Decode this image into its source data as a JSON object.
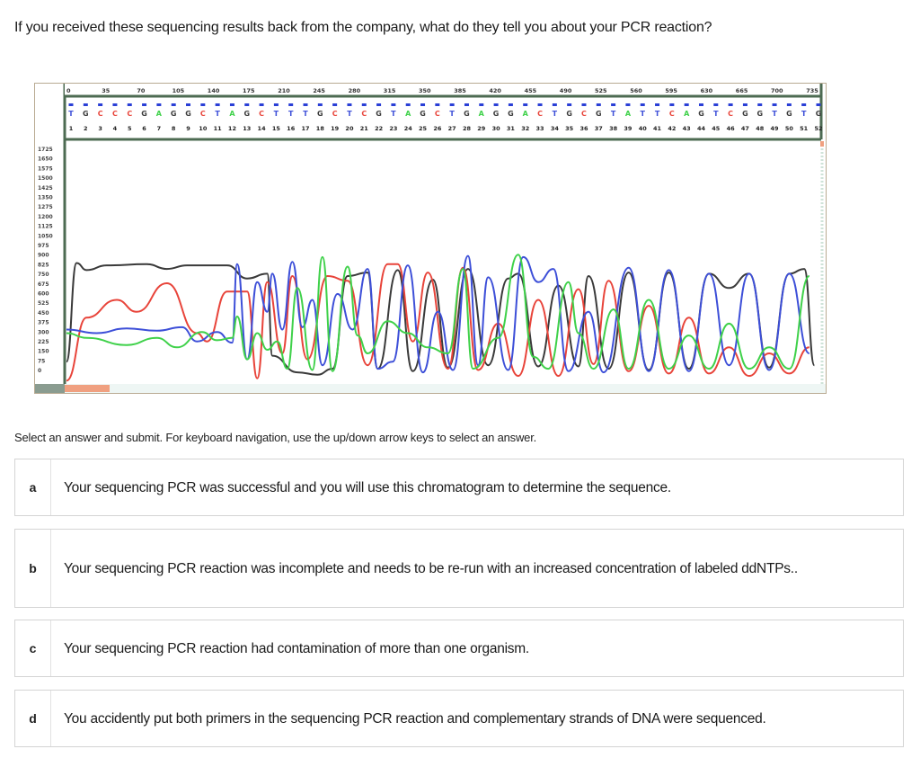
{
  "question": {
    "text": "If you received these sequencing results back from the company, what do they tell you about your PCR reaction?"
  },
  "instructions": "Select an answer and submit. For keyboard navigation, use the up/down arrow keys to select an answer.",
  "options": [
    {
      "letter": "a",
      "text": "Your sequencing PCR was successful and you will use this chromatogram to determine the sequence."
    },
    {
      "letter": "b",
      "text": "Your sequencing PCR reaction was incomplete and needs to be re-run with an increased concentration of labeled ddNTPs.."
    },
    {
      "letter": "c",
      "text": "Your sequencing PCR reaction had contamination of more than one organism."
    },
    {
      "letter": "d",
      "text": "You accidently put both primers in the sequencing PCR reaction and complementary strands of DNA were sequenced."
    }
  ],
  "colors": {
    "G": "#3a3a3a",
    "C": "#e8443a",
    "T": "#3d4fd8",
    "A": "#3fd14a",
    "frame": "#b9aa92",
    "axis_bar": "#4d6b52",
    "scroll_thumb": "#f0a080"
  },
  "chart_data": {
    "type": "line",
    "title": "DNA sequencing chromatogram",
    "x_ticks": [
      0,
      35,
      70,
      105,
      140,
      175,
      210,
      245,
      280,
      315,
      350,
      385,
      420,
      455,
      490,
      525,
      560,
      595,
      630,
      665,
      700,
      735
    ],
    "y_ticks": [
      1725,
      1650,
      1575,
      1500,
      1425,
      1350,
      1275,
      1200,
      1125,
      1050,
      975,
      900,
      825,
      750,
      675,
      600,
      525,
      450,
      375,
      300,
      225,
      150,
      75,
      0
    ],
    "ylim": [
      0,
      1725
    ],
    "xlim": [
      0,
      750
    ],
    "base_calls": [
      "T",
      "G",
      "C",
      "C",
      "C",
      "G",
      "A",
      "G",
      "G",
      "C",
      "T",
      "A",
      "G",
      "C",
      "T",
      "T",
      "T",
      "G",
      "C",
      "T",
      "C",
      "G",
      "T",
      "A",
      "G",
      "C",
      "T",
      "G",
      "A",
      "G",
      "G",
      "A",
      "C",
      "T",
      "G",
      "C",
      "G",
      "T",
      "A",
      "T",
      "T",
      "C",
      "A",
      "G",
      "T",
      "C",
      "G",
      "G",
      "T",
      "G",
      "T",
      "G"
    ],
    "base_numbers": [
      1,
      2,
      3,
      4,
      5,
      6,
      7,
      8,
      9,
      10,
      11,
      12,
      13,
      14,
      15,
      16,
      17,
      18,
      19,
      20,
      21,
      22,
      23,
      24,
      25,
      26,
      27,
      28,
      29,
      30,
      31,
      32,
      33,
      34,
      35,
      36,
      37,
      38,
      39,
      40,
      41,
      42,
      43,
      44,
      45,
      46,
      47,
      48,
      49,
      50,
      51,
      52
    ],
    "legend": [
      {
        "base": "G",
        "color": "black"
      },
      {
        "base": "C",
        "color": "red"
      },
      {
        "base": "T",
        "color": "blue"
      },
      {
        "base": "A",
        "color": "green"
      }
    ],
    "series": [
      {
        "name": "G",
        "points": [
          [
            0,
            180
          ],
          [
            10,
            1010
          ],
          [
            20,
            950
          ],
          [
            40,
            990
          ],
          [
            80,
            1000
          ],
          [
            100,
            960
          ],
          [
            120,
            990
          ],
          [
            160,
            990
          ],
          [
            180,
            880
          ],
          [
            200,
            920
          ],
          [
            205,
            230
          ],
          [
            230,
            90
          ],
          [
            250,
            70
          ],
          [
            265,
            120
          ],
          [
            280,
            900
          ],
          [
            300,
            930
          ],
          [
            310,
            120
          ],
          [
            330,
            950
          ],
          [
            345,
            100
          ],
          [
            365,
            870
          ],
          [
            380,
            130
          ],
          [
            400,
            960
          ],
          [
            420,
            150
          ],
          [
            440,
            880
          ],
          [
            450,
            920
          ],
          [
            470,
            140
          ],
          [
            490,
            820
          ],
          [
            510,
            140
          ],
          [
            520,
            900
          ],
          [
            540,
            120
          ],
          [
            560,
            930
          ],
          [
            580,
            110
          ],
          [
            600,
            930
          ],
          [
            620,
            120
          ],
          [
            640,
            920
          ],
          [
            660,
            800
          ],
          [
            680,
            920
          ],
          [
            700,
            130
          ],
          [
            720,
            920
          ],
          [
            735,
            960
          ],
          [
            745,
            150
          ]
        ]
      },
      {
        "name": "C",
        "points": [
          [
            0,
            20
          ],
          [
            20,
            550
          ],
          [
            50,
            700
          ],
          [
            70,
            600
          ],
          [
            100,
            840
          ],
          [
            130,
            420
          ],
          [
            140,
            350
          ],
          [
            160,
            770
          ],
          [
            180,
            770
          ],
          [
            190,
            40
          ],
          [
            200,
            850
          ],
          [
            215,
            250
          ],
          [
            225,
            900
          ],
          [
            240,
            200
          ],
          [
            260,
            900
          ],
          [
            280,
            860
          ],
          [
            300,
            150
          ],
          [
            320,
            1000
          ],
          [
            330,
            1000
          ],
          [
            345,
            350
          ],
          [
            360,
            930
          ],
          [
            380,
            120
          ],
          [
            395,
            970
          ],
          [
            410,
            110
          ],
          [
            430,
            500
          ],
          [
            450,
            60
          ],
          [
            470,
            700
          ],
          [
            490,
            60
          ],
          [
            510,
            790
          ],
          [
            525,
            160
          ],
          [
            540,
            860
          ],
          [
            560,
            100
          ],
          [
            580,
            650
          ],
          [
            600,
            80
          ],
          [
            620,
            550
          ],
          [
            640,
            80
          ],
          [
            660,
            300
          ],
          [
            680,
            60
          ],
          [
            700,
            250
          ],
          [
            720,
            80
          ],
          [
            740,
            300
          ]
        ]
      },
      {
        "name": "T",
        "points": [
          [
            0,
            450
          ],
          [
            30,
            420
          ],
          [
            60,
            460
          ],
          [
            90,
            440
          ],
          [
            115,
            470
          ],
          [
            130,
            350
          ],
          [
            150,
            430
          ],
          [
            165,
            340
          ],
          [
            170,
            1000
          ],
          [
            180,
            200
          ],
          [
            190,
            850
          ],
          [
            200,
            600
          ],
          [
            205,
            920
          ],
          [
            215,
            450
          ],
          [
            225,
            1020
          ],
          [
            235,
            470
          ],
          [
            245,
            700
          ],
          [
            255,
            150
          ],
          [
            270,
            750
          ],
          [
            285,
            450
          ],
          [
            300,
            960
          ],
          [
            310,
            120
          ],
          [
            325,
            180
          ],
          [
            340,
            990
          ],
          [
            355,
            90
          ],
          [
            370,
            600
          ],
          [
            385,
            110
          ],
          [
            400,
            1070
          ],
          [
            410,
            150
          ],
          [
            420,
            890
          ],
          [
            440,
            110
          ],
          [
            455,
            1060
          ],
          [
            470,
            850
          ],
          [
            485,
            960
          ],
          [
            500,
            100
          ],
          [
            520,
            600
          ],
          [
            535,
            90
          ],
          [
            560,
            970
          ],
          [
            580,
            100
          ],
          [
            600,
            950
          ],
          [
            620,
            100
          ],
          [
            640,
            920
          ],
          [
            660,
            150
          ],
          [
            680,
            920
          ],
          [
            700,
            110
          ],
          [
            720,
            920
          ],
          [
            740,
            250
          ]
        ]
      },
      {
        "name": "A",
        "points": [
          [
            0,
            420
          ],
          [
            20,
            380
          ],
          [
            60,
            320
          ],
          [
            90,
            380
          ],
          [
            110,
            300
          ],
          [
            135,
            430
          ],
          [
            150,
            360
          ],
          [
            165,
            380
          ],
          [
            170,
            560
          ],
          [
            180,
            200
          ],
          [
            190,
            420
          ],
          [
            200,
            280
          ],
          [
            210,
            350
          ],
          [
            220,
            120
          ],
          [
            230,
            800
          ],
          [
            245,
            110
          ],
          [
            255,
            1060
          ],
          [
            265,
            100
          ],
          [
            280,
            980
          ],
          [
            290,
            400
          ],
          [
            300,
            250
          ],
          [
            320,
            520
          ],
          [
            340,
            420
          ],
          [
            360,
            300
          ],
          [
            380,
            250
          ],
          [
            395,
            960
          ],
          [
            405,
            120
          ],
          [
            430,
            380
          ],
          [
            450,
            1080
          ],
          [
            465,
            220
          ],
          [
            480,
            120
          ],
          [
            500,
            850
          ],
          [
            510,
            420
          ],
          [
            525,
            120
          ],
          [
            545,
            620
          ],
          [
            560,
            120
          ],
          [
            580,
            700
          ],
          [
            600,
            120
          ],
          [
            620,
            400
          ],
          [
            640,
            120
          ],
          [
            660,
            500
          ],
          [
            680,
            120
          ],
          [
            700,
            300
          ],
          [
            720,
            120
          ],
          [
            740,
            900
          ]
        ]
      }
    ]
  }
}
